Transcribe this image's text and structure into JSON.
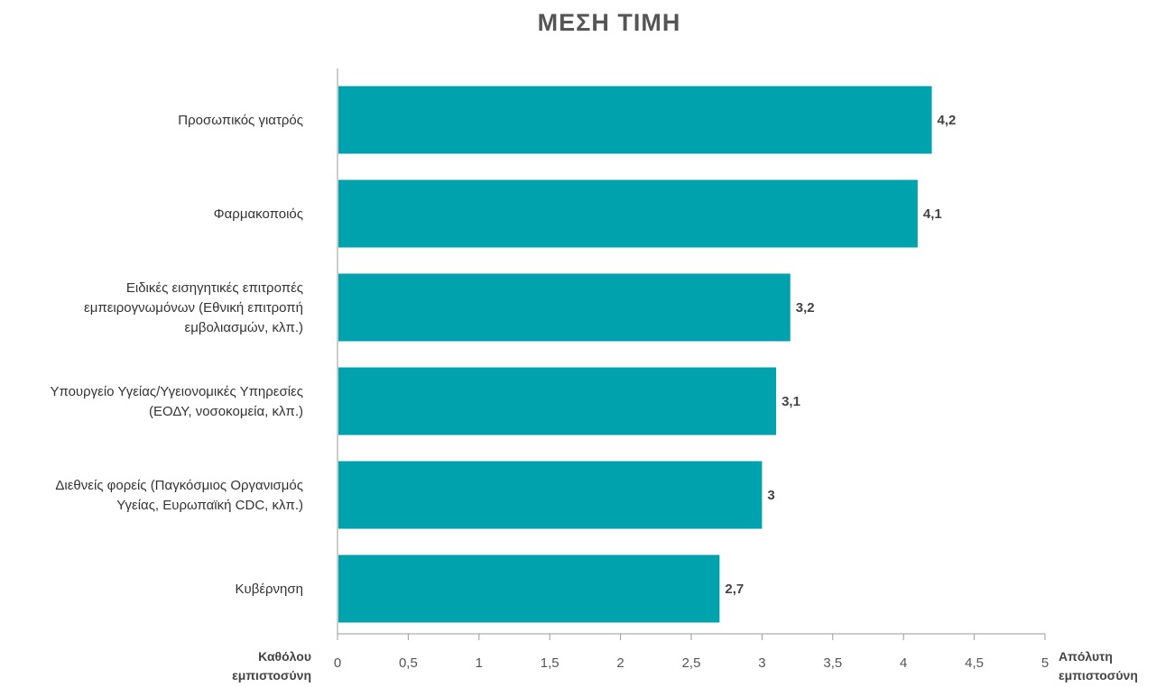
{
  "title": "ΜΕΣΗ ΤΙΜΗ",
  "colors": {
    "bar": "#00A3AD",
    "axis": "#999999"
  },
  "axis_end_labels": {
    "left": [
      "Καθόλου",
      "εμπιστοσύνη"
    ],
    "right": [
      "Απόλυτη",
      "εμπιστοσύνη"
    ]
  },
  "chart_data": {
    "type": "bar",
    "orientation": "horizontal",
    "title": "ΜΕΣΗ ΤΙΜΗ",
    "categories": [
      [
        "Προσωπικός γιατρός"
      ],
      [
        "Φαρμακοποιός"
      ],
      [
        "Ειδικές εισηγητικές επιτροπές",
        "εμπειρογνωμόνων (Εθνική επιτροπή",
        "εμβολιασμών, κλπ.)"
      ],
      [
        "Υπουργείο Υγείας/Υγειονομικές Υπηρεσίες",
        "(ΕΟΔΥ, νοσοκομεία, κλπ.)"
      ],
      [
        "Διεθνείς φορείς (Παγκόσμιος Οργανισμός",
        "Υγείας, Ευρωπαϊκή CDC, κλπ.)"
      ],
      [
        "Κυβέρνηση"
      ]
    ],
    "values": [
      4.2,
      4.1,
      3.2,
      3.1,
      3.0,
      2.7
    ],
    "value_labels": [
      "4,2",
      "4,1",
      "3,2",
      "3,1",
      "3",
      "2,7"
    ],
    "xlim": [
      0,
      5
    ],
    "x_ticks": [
      0,
      0.5,
      1,
      1.5,
      2,
      2.5,
      3,
      3.5,
      4,
      4.5,
      5
    ],
    "x_tick_labels": [
      "0",
      "0,5",
      "1",
      "1,5",
      "2",
      "2,5",
      "3",
      "3,5",
      "4",
      "4,5",
      "5"
    ],
    "grid": false,
    "legend": "none"
  }
}
